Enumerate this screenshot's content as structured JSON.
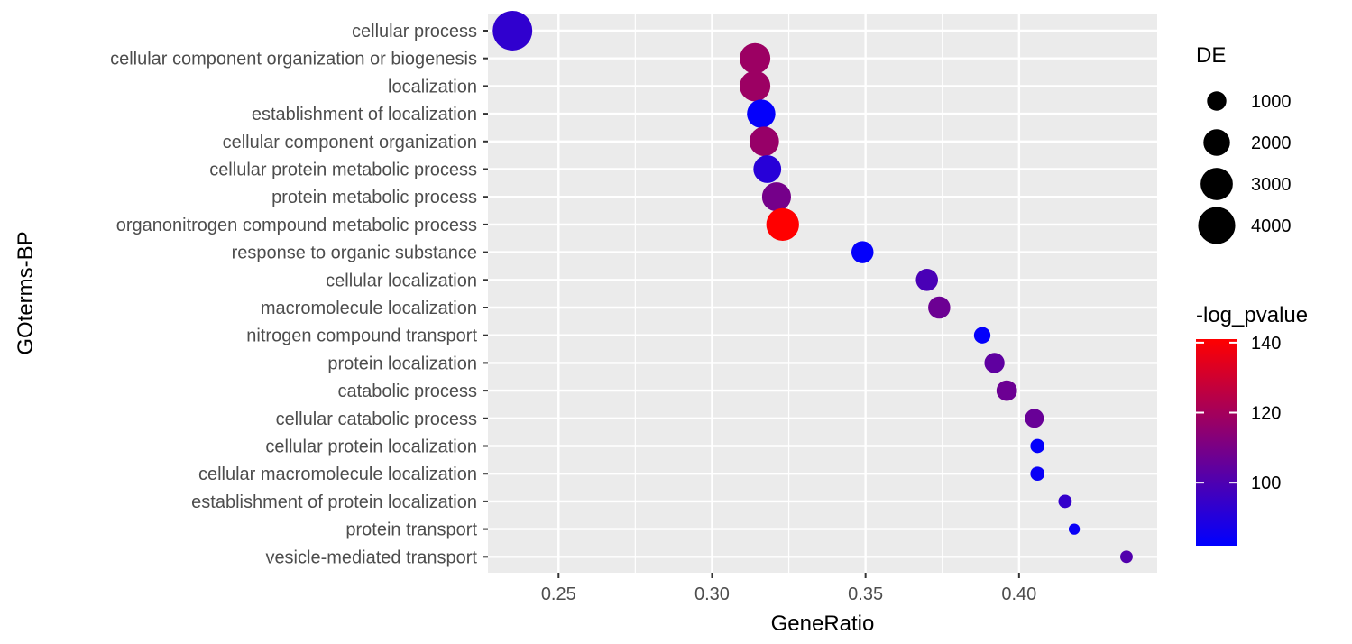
{
  "chart_data": {
    "type": "scatter",
    "title": "",
    "xlabel": "GeneRatio",
    "ylabel": "GOterms-BP",
    "xlim": [
      0.227,
      0.445
    ],
    "x_ticks": [
      "0.25",
      "0.30",
      "0.35",
      "0.40"
    ],
    "x_tick_values": [
      0.25,
      0.3,
      0.35,
      0.4
    ],
    "grid": true,
    "panel_background": "#ebebeb",
    "grid_color": "#ffffff",
    "categories": [
      "cellular process",
      "cellular component organization or biogenesis",
      "localization",
      "establishment of localization",
      "cellular component organization",
      "cellular protein metabolic process",
      "protein metabolic process",
      "organonitrogen compound metabolic process",
      "response to organic substance",
      "cellular localization",
      "macromolecule localization",
      "nitrogen compound transport",
      "protein localization",
      "catabolic process",
      "cellular catabolic process",
      "cellular protein localization",
      "cellular macromolecule localization",
      "establishment of protein localization",
      "protein transport",
      "vesicle-mediated transport"
    ],
    "points": [
      {
        "term": "cellular process",
        "gene_ratio": 0.235,
        "DE": 4600,
        "neg_log_pvalue": 93
      },
      {
        "term": "cellular component organization or biogenesis",
        "gene_ratio": 0.314,
        "DE": 2700,
        "neg_log_pvalue": 118
      },
      {
        "term": "localization",
        "gene_ratio": 0.314,
        "DE": 2700,
        "neg_log_pvalue": 118
      },
      {
        "term": "establishment of localization",
        "gene_ratio": 0.316,
        "DE": 2300,
        "neg_log_pvalue": 83
      },
      {
        "term": "cellular component organization",
        "gene_ratio": 0.317,
        "DE": 2500,
        "neg_log_pvalue": 117
      },
      {
        "term": "cellular protein metabolic process",
        "gene_ratio": 0.318,
        "DE": 2200,
        "neg_log_pvalue": 91
      },
      {
        "term": "protein metabolic process",
        "gene_ratio": 0.321,
        "DE": 2400,
        "neg_log_pvalue": 109
      },
      {
        "term": "organonitrogen compound metabolic process",
        "gene_ratio": 0.323,
        "DE": 3100,
        "neg_log_pvalue": 141
      },
      {
        "term": "response to organic substance",
        "gene_ratio": 0.349,
        "DE": 1350,
        "neg_log_pvalue": 83
      },
      {
        "term": "cellular localization",
        "gene_ratio": 0.37,
        "DE": 1350,
        "neg_log_pvalue": 99
      },
      {
        "term": "macromolecule localization",
        "gene_ratio": 0.374,
        "DE": 1350,
        "neg_log_pvalue": 107
      },
      {
        "term": "nitrogen compound transport",
        "gene_ratio": 0.388,
        "DE": 700,
        "neg_log_pvalue": 83
      },
      {
        "term": "protein localization",
        "gene_ratio": 0.392,
        "DE": 1100,
        "neg_log_pvalue": 104
      },
      {
        "term": "catabolic process",
        "gene_ratio": 0.396,
        "DE": 1150,
        "neg_log_pvalue": 107
      },
      {
        "term": "cellular catabolic process",
        "gene_ratio": 0.405,
        "DE": 950,
        "neg_log_pvalue": 106
      },
      {
        "term": "cellular protein localization",
        "gene_ratio": 0.406,
        "DE": 480,
        "neg_log_pvalue": 83
      },
      {
        "term": "cellular macromolecule localization",
        "gene_ratio": 0.406,
        "DE": 480,
        "neg_log_pvalue": 84
      },
      {
        "term": "establishment of protein localization",
        "gene_ratio": 0.415,
        "DE": 420,
        "neg_log_pvalue": 94
      },
      {
        "term": "protein transport",
        "gene_ratio": 0.418,
        "DE": 250,
        "neg_log_pvalue": 84
      },
      {
        "term": "vesicle-mediated transport",
        "gene_ratio": 0.435,
        "DE": 350,
        "neg_log_pvalue": 101
      }
    ],
    "size_legend": {
      "title": "DE",
      "breaks": [
        1000,
        2000,
        3000,
        4000
      ],
      "labels": [
        "1000",
        "2000",
        "3000",
        "4000"
      ]
    },
    "color_legend": {
      "title": "-log_pvalue",
      "low": 82,
      "high": 141,
      "low_color": "#0000ff",
      "high_color": "#ff0000",
      "breaks": [
        100,
        120,
        140
      ],
      "labels": [
        "100",
        "120",
        "140"
      ]
    }
  }
}
